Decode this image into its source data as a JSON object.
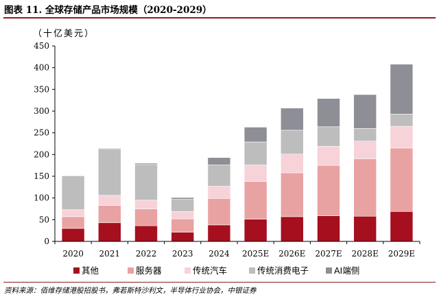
{
  "figure": {
    "title": "图表 11. 全球存储产品市场规模（2020-2029）",
    "source": "资料来源：佰维存储港股招股书，弗若斯特沙利文，半导体行业协会，中银证券"
  },
  "colors": {
    "其他": "#a50f1e",
    "服务器": "#e9a2a2",
    "传统汽车": "#f7d2d8",
    "传统消费电子": "#bdbdbd",
    "AI端侧": "#8e8e96",
    "rule": "#8b1c1c"
  },
  "chart_data": {
    "type": "bar",
    "stacked": true,
    "title": "",
    "ylabel": "（十亿美元）",
    "xlabel": "",
    "ylim": [
      0,
      450
    ],
    "yticks": [
      0,
      50,
      100,
      150,
      200,
      250,
      300,
      350,
      400,
      450
    ],
    "grid": false,
    "legend_position": "bottom",
    "categories": [
      "2020",
      "2021",
      "2022",
      "2023",
      "2024",
      "2025E",
      "2026E",
      "2027E",
      "2028E",
      "2029E"
    ],
    "series": [
      {
        "name": "其他",
        "values": [
          30,
          43,
          36,
          21,
          38,
          51,
          57,
          59,
          58,
          69
        ]
      },
      {
        "name": "服务器",
        "values": [
          27,
          40,
          39,
          31,
          61,
          87,
          101,
          116,
          132,
          146
        ]
      },
      {
        "name": "传统汽车",
        "values": [
          16,
          23,
          20,
          17,
          28,
          38,
          43,
          44,
          41,
          50
        ]
      },
      {
        "name": "传统消费电子",
        "values": [
          78,
          106,
          82,
          28,
          49,
          53,
          55,
          45,
          29,
          28
        ]
      },
      {
        "name": "AI端侧",
        "values": [
          0,
          2,
          3,
          4,
          17,
          34,
          51,
          65,
          78,
          115
        ]
      }
    ]
  }
}
